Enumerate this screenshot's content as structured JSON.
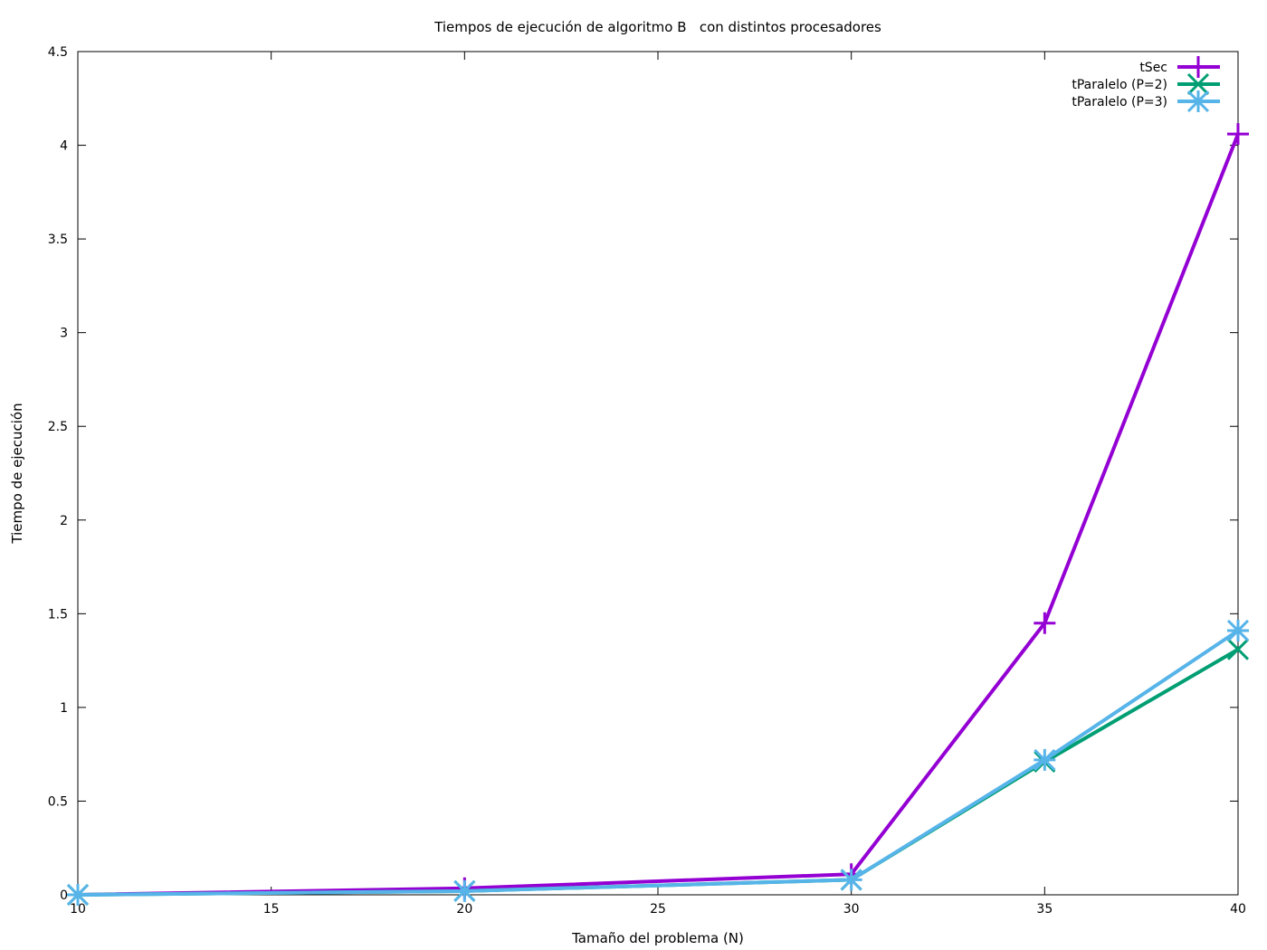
{
  "chart_data": {
    "type": "line",
    "title": "Tiempos de ejecución de algoritmo B   con distintos procesadores",
    "xlabel": "Tamaño del problema (N)",
    "ylabel": "Tiempo de ejecución",
    "xlim": [
      10,
      40
    ],
    "ylim": [
      0,
      4.5
    ],
    "xticks": [
      10,
      15,
      20,
      25,
      30,
      35,
      40
    ],
    "yticks": [
      0,
      0.5,
      1,
      1.5,
      2,
      2.5,
      3,
      3.5,
      4,
      4.5
    ],
    "x": [
      10,
      20,
      30,
      35,
      40
    ],
    "legend_position": "top-right",
    "grid": false,
    "series": [
      {
        "name": "tSec",
        "values": [
          0.0,
          0.035,
          0.11,
          1.45,
          4.06
        ],
        "color": "#9400d3",
        "marker": "plus"
      },
      {
        "name": "tParalelo (P=2)",
        "values": [
          0.0,
          0.02,
          0.08,
          0.71,
          1.31
        ],
        "color": "#009e73",
        "marker": "cross"
      },
      {
        "name": "tParalelo (P=3)",
        "values": [
          0.0,
          0.02,
          0.08,
          0.72,
          1.41
        ],
        "color": "#56b4e9",
        "marker": "star"
      }
    ]
  }
}
